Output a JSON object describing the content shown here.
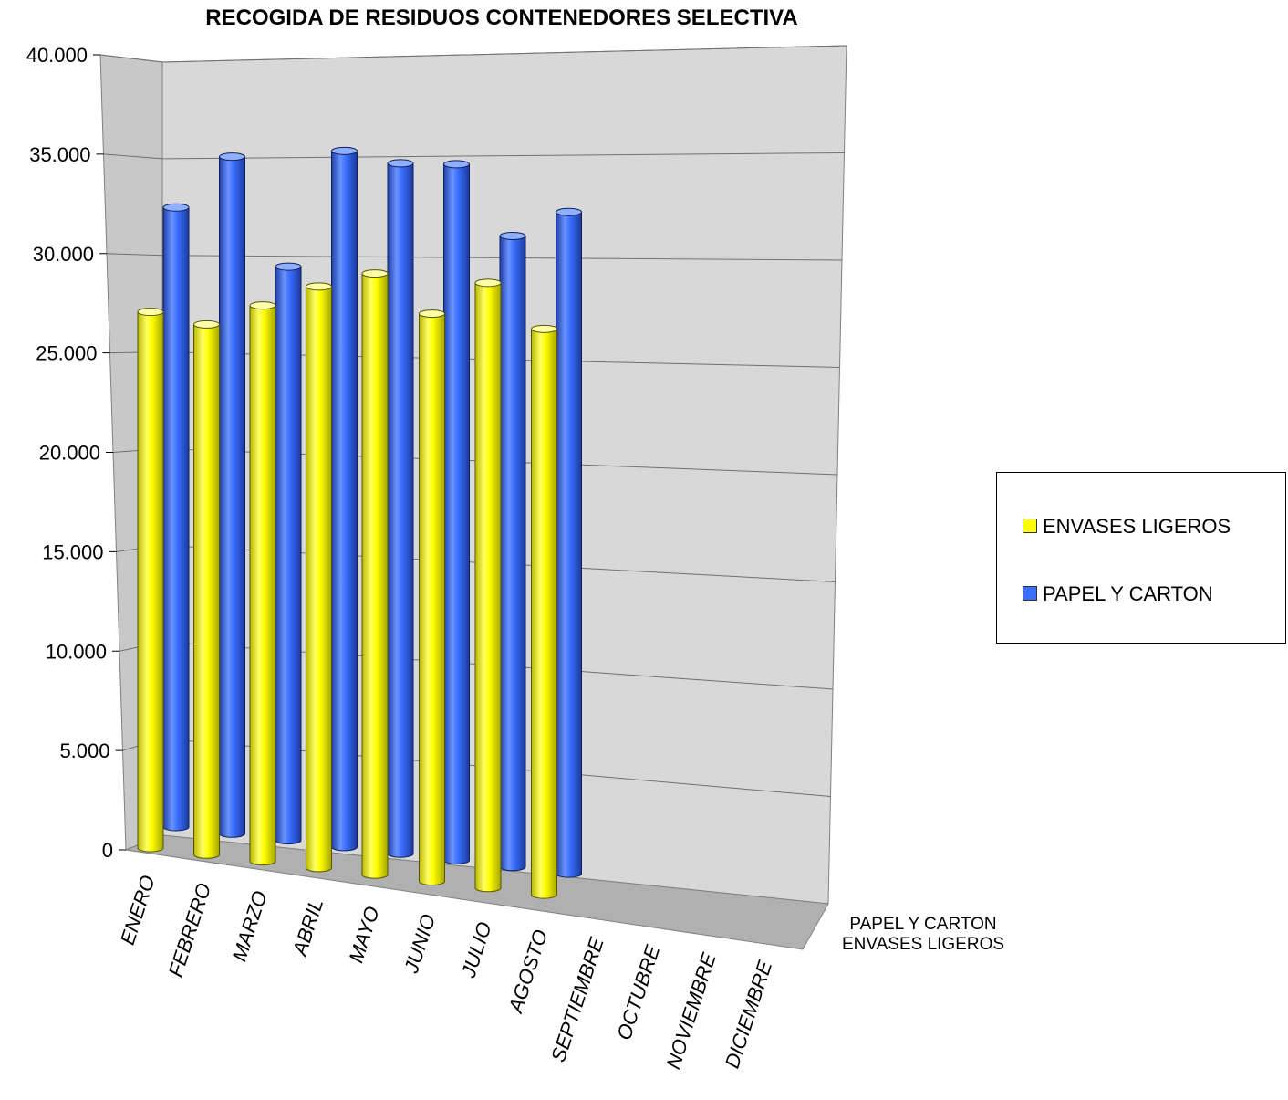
{
  "chart_data": {
    "type": "bar",
    "title": "RECOGIDA DE RESIDUOS CONTENEDORES SELECTIVA",
    "categories": [
      "ENERO",
      "FEBRERO",
      "MARZO",
      "ABRIL",
      "MAYO",
      "JUNIO",
      "JULIO",
      "AGOSTO",
      "SEPTIEMBRE",
      "OCTUBRE",
      "NOVIEMBRE",
      "DICIEMBRE"
    ],
    "series": [
      {
        "name": "ENVASES LIGEROS",
        "color": "#ffff00",
        "values": [
          27200,
          26900,
          28200,
          29500,
          30500,
          28800,
          30700,
          28700,
          null,
          null,
          null,
          null
        ]
      },
      {
        "name": "PAPEL Y CARTON",
        "color": "#3a6fff",
        "values": [
          32400,
          35400,
          30000,
          36400,
          36100,
          36400,
          33000,
          34600,
          null,
          null,
          null,
          null
        ]
      }
    ],
    "yticks": [
      "0",
      "5.000",
      "10.000",
      "15.000",
      "20.000",
      "25.000",
      "30.000",
      "35.000",
      "40.000"
    ],
    "ylim": [
      0,
      40000
    ],
    "depth_labels": [
      "PAPEL Y CARTON",
      "ENVASES LIGEROS"
    ],
    "legend": {
      "placement": "right",
      "items": [
        "ENVASES LIGEROS",
        "PAPEL Y CARTON"
      ]
    },
    "grid": true
  }
}
